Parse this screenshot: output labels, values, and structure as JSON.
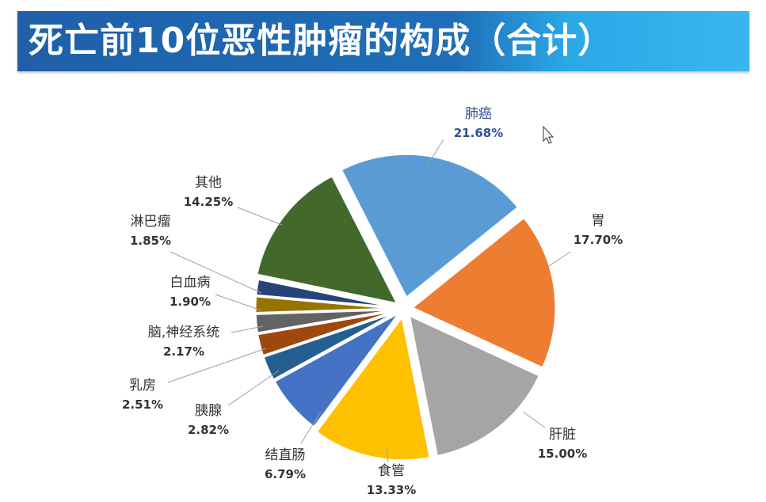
{
  "title": "死亡前10位恶性肿瘤的构成（合计）",
  "chart_data": {
    "type": "pie",
    "title": "死亡前10位恶性肿瘤的构成（合计）",
    "series": [
      {
        "name": "肺癌",
        "value": 21.68,
        "label": "21.68%",
        "color": "#5b9bd5"
      },
      {
        "name": "胃",
        "value": 17.7,
        "label": "17.70%",
        "color": "#ed7d31"
      },
      {
        "name": "肝脏",
        "value": 15.0,
        "label": "15.00%",
        "color": "#a5a5a5"
      },
      {
        "name": "食管",
        "value": 13.33,
        "label": "13.33%",
        "color": "#ffc000"
      },
      {
        "name": "结直肠",
        "value": 6.79,
        "label": "6.79%",
        "color": "#4472c4"
      },
      {
        "name": "胰腺",
        "value": 2.82,
        "label": "2.82%",
        "color": "#255e91"
      },
      {
        "name": "乳房",
        "value": 2.51,
        "label": "2.51%",
        "color": "#9e480e"
      },
      {
        "name": "脑,神经系统",
        "value": 2.17,
        "label": "2.17%",
        "color": "#636363"
      },
      {
        "name": "白血病",
        "value": 1.9,
        "label": "1.90%",
        "color": "#997300"
      },
      {
        "name": "淋巴瘤",
        "value": 1.85,
        "label": "1.85%",
        "color": "#264478"
      },
      {
        "name": "其他",
        "value": 14.25,
        "label": "14.25%",
        "color": "#43682b"
      }
    ]
  }
}
